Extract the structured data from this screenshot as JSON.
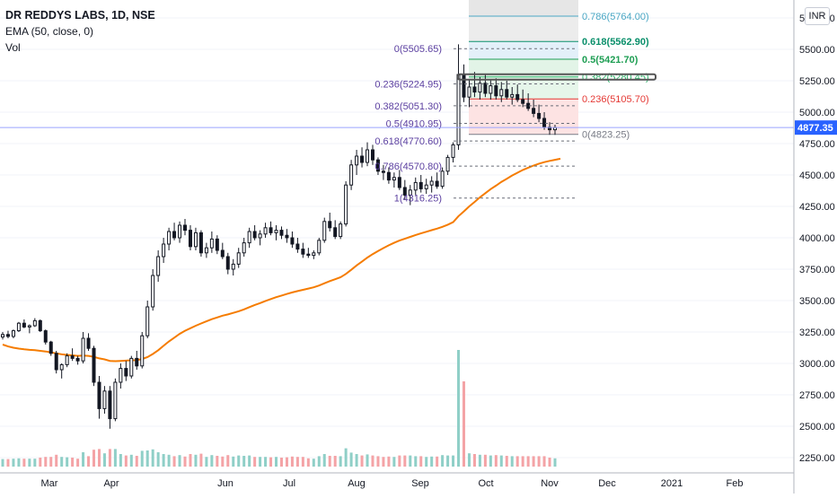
{
  "header": {
    "symbol": "DR REDDYS LABS, 1D, NSE",
    "indicator": "EMA (50, close, 0)",
    "volume_label": "Vol",
    "currency": "INR"
  },
  "colors": {
    "up": "#26a69a",
    "down": "#ef5350",
    "ema": "#f57c00",
    "vol_up": "#8fcfc7",
    "vol_down": "#f4a3a6",
    "fib_label": "#5b3fa0",
    "price_badge": "#2962ff"
  },
  "chart_data": {
    "type": "candlestick",
    "price_axis": {
      "min": 2250,
      "max": 5750,
      "ticks": [
        "5750.00",
        "5500.00",
        "5250.00",
        "5000.00",
        "4750.00",
        "4500.00",
        "4250.00",
        "4000.00",
        "3750.00",
        "3500.00",
        "3250.00",
        "3000.00",
        "2750.00",
        "2500.00",
        "2250.00"
      ]
    },
    "time_axis": {
      "labels": [
        "Mar",
        "Apr",
        "Jun",
        "Jul",
        "Aug",
        "Sep",
        "Oct",
        "Nov",
        "Dec",
        "2021",
        "Feb"
      ]
    },
    "last_price": "4877.35",
    "fib_left": [
      {
        "label": "0(5505.65)",
        "price": 5505.65
      },
      {
        "label": "0.236(5224.95)",
        "price": 5224.95
      },
      {
        "label": "0.382(5051.30)",
        "price": 5051.3
      },
      {
        "label": "0.5(4910.95)",
        "price": 4910.95
      },
      {
        "label": "0.618(4770.60)",
        "price": 4770.6
      },
      {
        "label": "0.786(4570.80)",
        "price": 4570.8
      },
      {
        "label": "1(4316.25)",
        "price": 4316.25
      }
    ],
    "fib_right": [
      {
        "label": "0.786(5764.00)",
        "price": 5764.0,
        "color": "#4aa7c4"
      },
      {
        "label": "0.618(5562.90)",
        "price": 5562.9,
        "color": "#0a8f6b"
      },
      {
        "label": "0.5(5421.70)",
        "price": 5421.7,
        "color": "#1e9e53"
      },
      {
        "label": "0.382(5280.45)",
        "price": 5280.45,
        "color": "#2db36a"
      },
      {
        "label": "0.236(5105.70)",
        "price": 5105.7,
        "color": "#e53935"
      },
      {
        "label": "0(4823.25)",
        "price": 4823.25,
        "color": "#787b86"
      }
    ],
    "candles": [
      [
        3210,
        3250,
        3190,
        3230
      ],
      [
        3230,
        3260,
        3200,
        3215
      ],
      [
        3215,
        3270,
        3200,
        3260
      ],
      [
        3260,
        3330,
        3250,
        3320
      ],
      [
        3320,
        3350,
        3280,
        3290
      ],
      [
        3290,
        3310,
        3240,
        3300
      ],
      [
        3300,
        3360,
        3290,
        3340
      ],
      [
        3340,
        3350,
        3250,
        3260
      ],
      [
        3260,
        3270,
        3150,
        3170
      ],
      [
        3170,
        3180,
        3060,
        3080
      ],
      [
        3080,
        3100,
        2920,
        2950
      ],
      [
        2950,
        3000,
        2880,
        2990
      ],
      [
        2990,
        3080,
        2970,
        3060
      ],
      [
        3060,
        3120,
        3020,
        3040
      ],
      [
        3040,
        3060,
        2990,
        3020
      ],
      [
        3020,
        3250,
        3000,
        3200
      ],
      [
        3200,
        3240,
        3100,
        3120
      ],
      [
        3120,
        3140,
        2820,
        2850
      ],
      [
        2850,
        2900,
        2560,
        2640
      ],
      [
        2640,
        2820,
        2600,
        2780
      ],
      [
        2780,
        2820,
        2480,
        2560
      ],
      [
        2560,
        2880,
        2540,
        2850
      ],
      [
        2850,
        3000,
        2800,
        2960
      ],
      [
        2960,
        3020,
        2860,
        2900
      ],
      [
        2900,
        3060,
        2880,
        3040
      ],
      [
        3040,
        3100,
        2950,
        2980
      ],
      [
        2980,
        3250,
        2960,
        3220
      ],
      [
        3220,
        3500,
        3200,
        3450
      ],
      [
        3450,
        3750,
        3420,
        3700
      ],
      [
        3700,
        3900,
        3650,
        3850
      ],
      [
        3850,
        4000,
        3800,
        3950
      ],
      [
        3950,
        4080,
        3900,
        4050
      ],
      [
        4050,
        4120,
        3980,
        4000
      ],
      [
        4000,
        4130,
        3960,
        4100
      ],
      [
        4100,
        4150,
        4020,
        4060
      ],
      [
        4060,
        4100,
        3900,
        3930
      ],
      [
        3930,
        4080,
        3900,
        4040
      ],
      [
        4040,
        4060,
        3850,
        3880
      ],
      [
        3880,
        3960,
        3840,
        3920
      ],
      [
        3920,
        4050,
        3880,
        3990
      ],
      [
        3990,
        4020,
        3870,
        3900
      ],
      [
        3900,
        3960,
        3830,
        3850
      ],
      [
        3850,
        3880,
        3710,
        3750
      ],
      [
        3750,
        3830,
        3700,
        3790
      ],
      [
        3790,
        3920,
        3760,
        3880
      ],
      [
        3880,
        4000,
        3850,
        3960
      ],
      [
        3960,
        4080,
        3920,
        4050
      ],
      [
        4050,
        4100,
        3980,
        4000
      ],
      [
        4000,
        4060,
        3940,
        4030
      ],
      [
        4030,
        4120,
        4000,
        4080
      ],
      [
        4080,
        4130,
        4020,
        4040
      ],
      [
        4040,
        4100,
        3980,
        4060
      ],
      [
        4060,
        4090,
        3990,
        4020
      ],
      [
        4020,
        4070,
        3960,
        4000
      ],
      [
        4000,
        4050,
        3920,
        3950
      ],
      [
        3950,
        4000,
        3880,
        3910
      ],
      [
        3910,
        3960,
        3840,
        3870
      ],
      [
        3870,
        3920,
        3840,
        3860
      ],
      [
        3860,
        3900,
        3830,
        3880
      ],
      [
        3880,
        4000,
        3860,
        3980
      ],
      [
        3980,
        4160,
        3960,
        4130
      ],
      [
        4130,
        4200,
        4050,
        4080
      ],
      [
        4080,
        4140,
        3990,
        4010
      ],
      [
        4010,
        4130,
        3990,
        4110
      ],
      [
        4110,
        4450,
        4090,
        4420
      ],
      [
        4420,
        4620,
        4380,
        4580
      ],
      [
        4580,
        4700,
        4500,
        4650
      ],
      [
        4650,
        4720,
        4560,
        4600
      ],
      [
        4600,
        4760,
        4570,
        4700
      ],
      [
        4700,
        4740,
        4580,
        4620
      ],
      [
        4620,
        4640,
        4500,
        4530
      ],
      [
        4530,
        4580,
        4460,
        4520
      ],
      [
        4520,
        4560,
        4430,
        4460
      ],
      [
        4460,
        4520,
        4400,
        4480
      ],
      [
        4480,
        4540,
        4380,
        4400
      ],
      [
        4400,
        4460,
        4300,
        4340
      ],
      [
        4340,
        4420,
        4260,
        4380
      ],
      [
        4380,
        4480,
        4340,
        4440
      ],
      [
        4440,
        4500,
        4360,
        4390
      ],
      [
        4390,
        4470,
        4350,
        4420
      ],
      [
        4420,
        4490,
        4360,
        4450
      ],
      [
        4450,
        4520,
        4390,
        4410
      ],
      [
        4410,
        4560,
        4390,
        4530
      ],
      [
        4530,
        4660,
        4500,
        4640
      ],
      [
        4640,
        4760,
        4600,
        4740
      ],
      [
        4740,
        5540,
        4700,
        5300
      ],
      [
        5300,
        5380,
        5080,
        5120
      ],
      [
        5120,
        5260,
        5040,
        5200
      ],
      [
        5200,
        5320,
        5120,
        5160
      ],
      [
        5160,
        5280,
        5100,
        5230
      ],
      [
        5230,
        5300,
        5120,
        5150
      ],
      [
        5150,
        5260,
        5100,
        5210
      ],
      [
        5210,
        5270,
        5100,
        5130
      ],
      [
        5130,
        5240,
        5080,
        5180
      ],
      [
        5180,
        5250,
        5100,
        5120
      ],
      [
        5120,
        5200,
        5060,
        5140
      ],
      [
        5140,
        5220,
        5080,
        5100
      ],
      [
        5100,
        5180,
        5040,
        5070
      ],
      [
        5070,
        5150,
        5010,
        5030
      ],
      [
        5030,
        5100,
        4960,
        4990
      ],
      [
        4990,
        5060,
        4920,
        4950
      ],
      [
        4950,
        5000,
        4860,
        4880
      ],
      [
        4880,
        4920,
        4820,
        4860
      ],
      [
        4860,
        4900,
        4820,
        4877.35
      ]
    ],
    "ema": [
      3150,
      3135,
      3125,
      3118,
      3112,
      3108,
      3105,
      3100,
      3095,
      3088,
      3080,
      3072,
      3068,
      3064,
      3060,
      3062,
      3060,
      3052,
      3040,
      3032,
      3020,
      3018,
      3020,
      3022,
      3025,
      3026,
      3035,
      3050,
      3075,
      3105,
      3140,
      3175,
      3205,
      3235,
      3260,
      3280,
      3300,
      3318,
      3335,
      3352,
      3366,
      3380,
      3390,
      3402,
      3415,
      3430,
      3448,
      3465,
      3480,
      3497,
      3512,
      3527,
      3540,
      3553,
      3565,
      3576,
      3586,
      3596,
      3606,
      3620,
      3638,
      3655,
      3670,
      3686,
      3712,
      3745,
      3780,
      3810,
      3842,
      3870,
      3895,
      3918,
      3940,
      3960,
      3978,
      3992,
      4007,
      4022,
      4035,
      4048,
      4061,
      4073,
      4087,
      4104,
      4125,
      4172,
      4210,
      4250,
      4285,
      4322,
      4355,
      4387,
      4415,
      4445,
      4470,
      4496,
      4518,
      4540,
      4558,
      4575,
      4590,
      4602,
      4612,
      4621,
      4629
    ]
  }
}
